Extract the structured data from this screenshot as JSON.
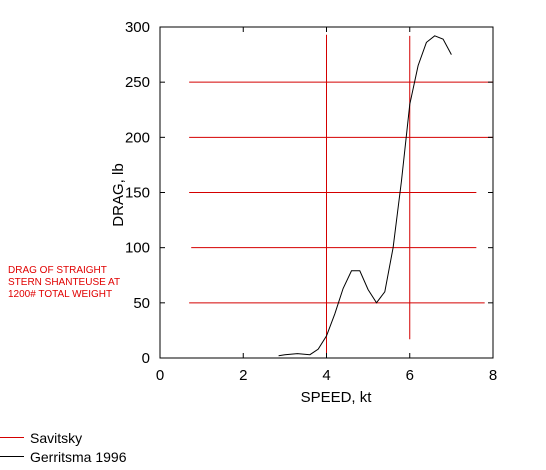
{
  "chart_data": {
    "type": "line",
    "xlabel": "SPEED, kt",
    "ylabel": "DRAG, lb",
    "xlim": [
      0,
      8
    ],
    "ylim": [
      0,
      300
    ],
    "xticks": [
      "0",
      "2",
      "4",
      "6",
      "8"
    ],
    "yticks": [
      "0",
      "50",
      "100",
      "150",
      "200",
      "250",
      "300"
    ],
    "grid": false,
    "annotation": [
      "DRAG OF STRAIGHT",
      "STERN SHANTEUSE AT",
      "1200# TOTAL WEIGHT"
    ],
    "series": [
      {
        "name": "Savitsky",
        "color": "#d40000",
        "style": "reference-lines",
        "horizontal": [
          {
            "y": 250,
            "x": [
              0.7,
              8.0
            ]
          },
          {
            "y": 200,
            "x": [
              0.7,
              8.0
            ]
          },
          {
            "y": 150,
            "x": [
              0.7,
              7.6
            ]
          },
          {
            "y": 100,
            "x": [
              0.75,
              7.6
            ]
          },
          {
            "y": 50,
            "x": [
              0.7,
              7.8
            ]
          }
        ],
        "vertical": [
          {
            "x": 4.0,
            "y": [
              0,
              293
            ]
          },
          {
            "x": 6.0,
            "y": [
              17,
              292
            ]
          }
        ]
      },
      {
        "name": "Gerritsma 1996",
        "color": "#000000",
        "x": [
          2.85,
          3.0,
          3.3,
          3.6,
          3.8,
          4.0,
          4.2,
          4.4,
          4.6,
          4.8,
          5.0,
          5.2,
          5.4,
          5.6,
          5.8,
          6.0,
          6.2,
          6.4,
          6.6,
          6.8,
          7.0
        ],
        "y": [
          2,
          3,
          4,
          3,
          8,
          20,
          40,
          63,
          79,
          79,
          62,
          50,
          60,
          100,
          160,
          230,
          265,
          286,
          292,
          289,
          275
        ]
      }
    ]
  }
}
